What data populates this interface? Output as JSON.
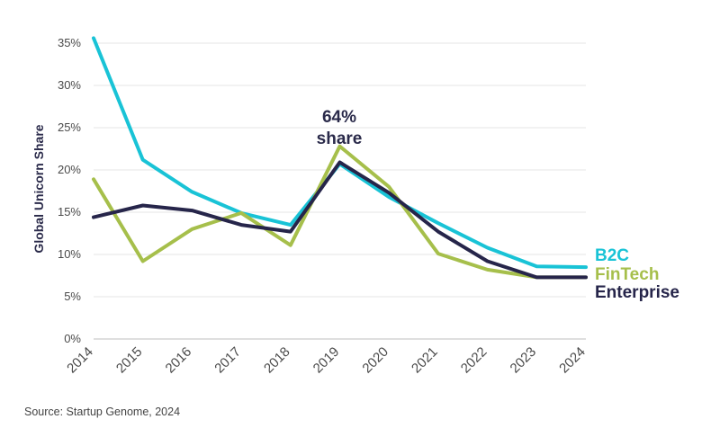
{
  "chart_data": {
    "type": "line",
    "title": "",
    "xlabel": "",
    "ylabel": "Global Unicorn Share",
    "x": [
      "2014",
      "2015",
      "2016",
      "2017",
      "2018",
      "2019",
      "2020",
      "2021",
      "2022",
      "2023",
      "2024"
    ],
    "yticks": [
      "0%",
      "5%",
      "10%",
      "15%",
      "20%",
      "25%",
      "30%",
      "35%"
    ],
    "ylim": [
      0,
      35
    ],
    "grid": true,
    "series": [
      {
        "name": "B2C",
        "color": "#19c3d6",
        "values": [
          35.6,
          21.2,
          17.4,
          14.9,
          13.5,
          20.7,
          16.8,
          13.7,
          10.8,
          8.6,
          8.5
        ]
      },
      {
        "name": "FinTech",
        "color": "#a6bf4b",
        "values": [
          18.9,
          9.2,
          13.0,
          14.9,
          11.1,
          22.8,
          18.0,
          10.1,
          8.2,
          7.3,
          7.3
        ]
      },
      {
        "name": "Enterprise",
        "color": "#26254a",
        "values": [
          14.4,
          15.8,
          15.2,
          13.5,
          12.7,
          20.9,
          17.3,
          12.7,
          9.2,
          7.3,
          7.3
        ]
      }
    ],
    "annotation": {
      "line1": "64%",
      "line2": "share",
      "x": "2019"
    },
    "legend": "right, at line ends",
    "source": "Source: Startup Genome, 2024"
  }
}
